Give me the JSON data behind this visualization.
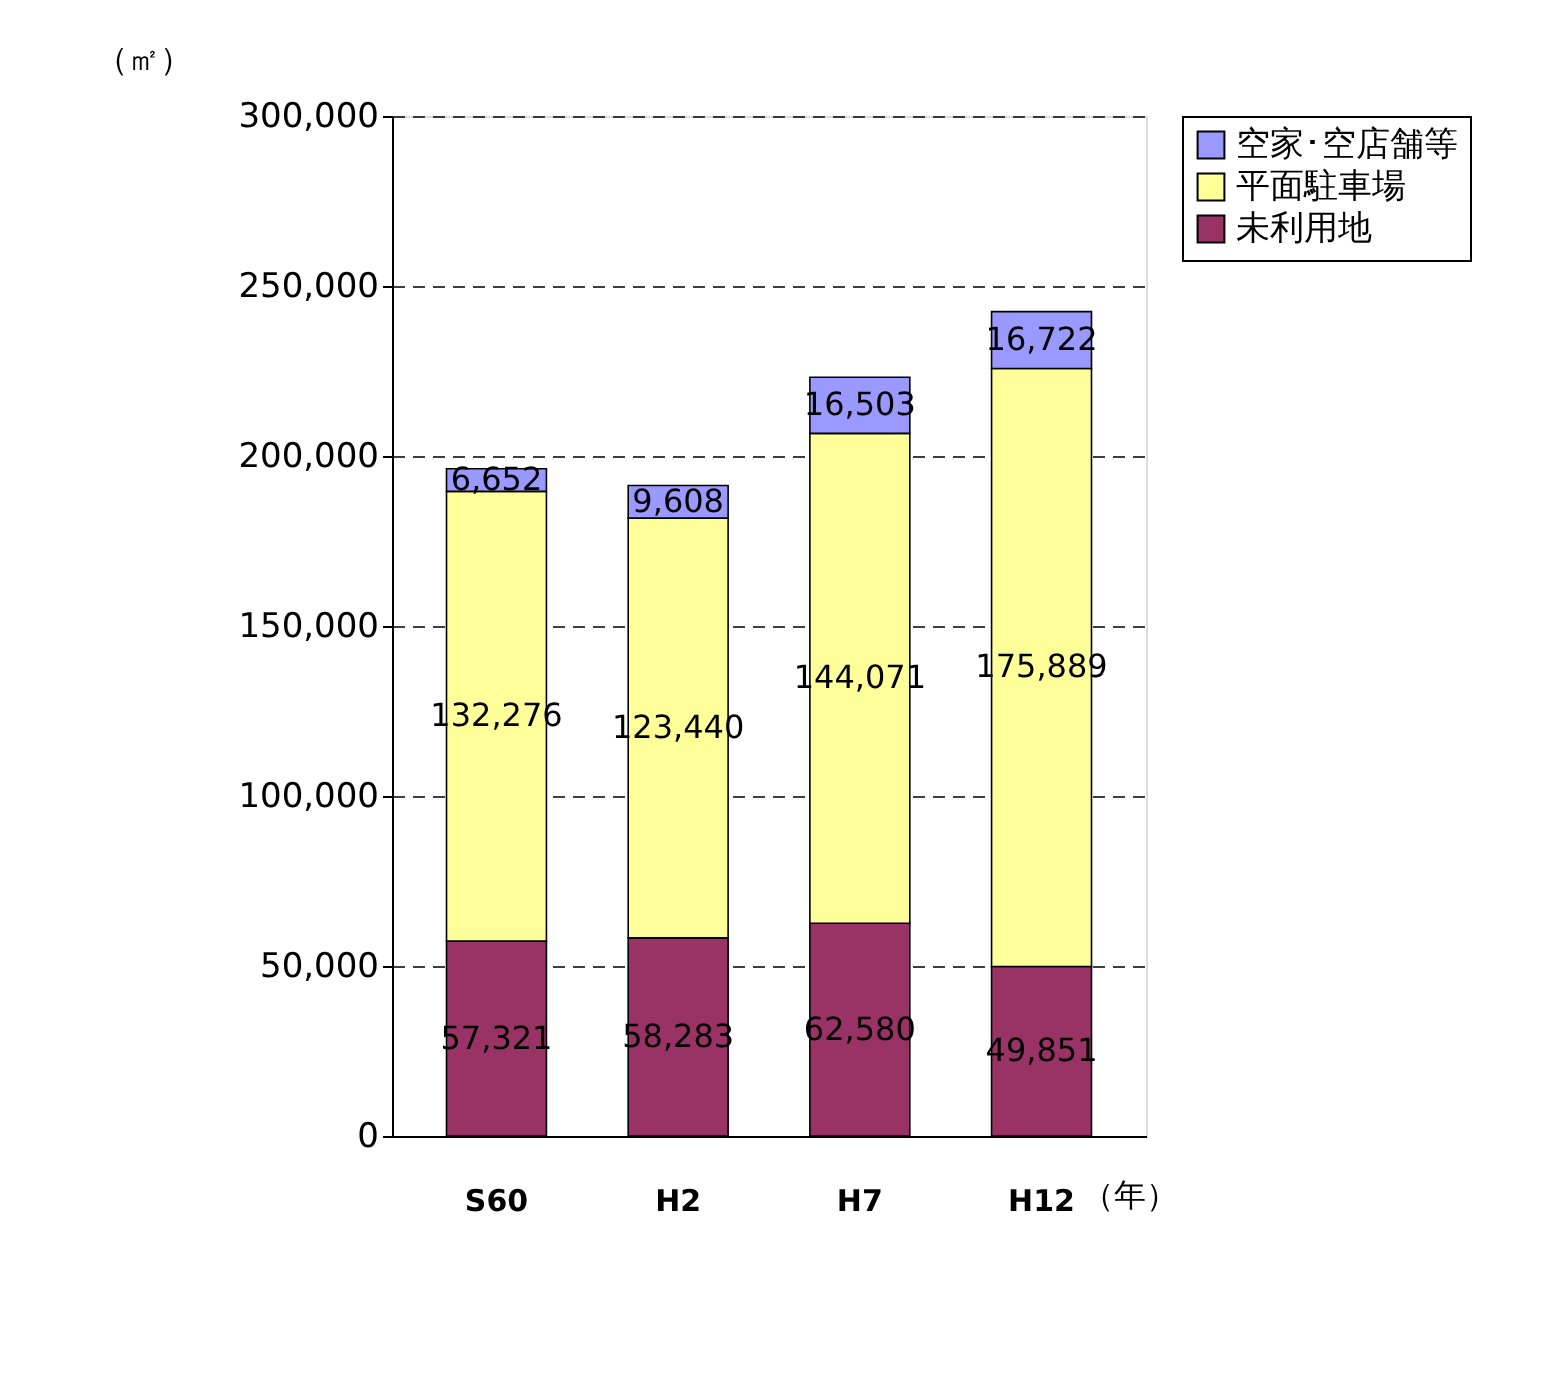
{
  "chart_data": {
    "type": "bar",
    "stacked": true,
    "ylabel": "（㎡）",
    "xlabel": "（年）",
    "categories": [
      "S60",
      "H2",
      "H7",
      "H12"
    ],
    "series": [
      {
        "name": "未利用地",
        "color": "#993366",
        "values": [
          57321,
          58283,
          62580,
          49851
        ],
        "value_labels": [
          "57,321",
          "58,283",
          "62,580",
          "49,851"
        ]
      },
      {
        "name": "平面駐車場",
        "color": "#ffff99",
        "values": [
          132276,
          123440,
          144071,
          175889
        ],
        "value_labels": [
          "132,276",
          "123,440",
          "144,071",
          "175,889"
        ]
      },
      {
        "name": "空家･空店舗等",
        "color": "#9999ff",
        "values": [
          6652,
          9608,
          16503,
          16722
        ],
        "value_labels": [
          "6,652",
          "9,608",
          "16,503",
          "16,722"
        ]
      }
    ],
    "ylim": [
      0,
      300000
    ],
    "yticks": [
      0,
      {
        "value": 50000,
        "label": "50,000"
      },
      {
        "value": 100000,
        "label": "100,000"
      },
      {
        "value": 150000,
        "label": "150,000"
      },
      {
        "value": 200000,
        "label": "200,000"
      },
      {
        "value": 250000,
        "label": "250,000"
      },
      {
        "value": 300000,
        "label": "300,000"
      }
    ],
    "grid": "y",
    "legend": "right"
  }
}
